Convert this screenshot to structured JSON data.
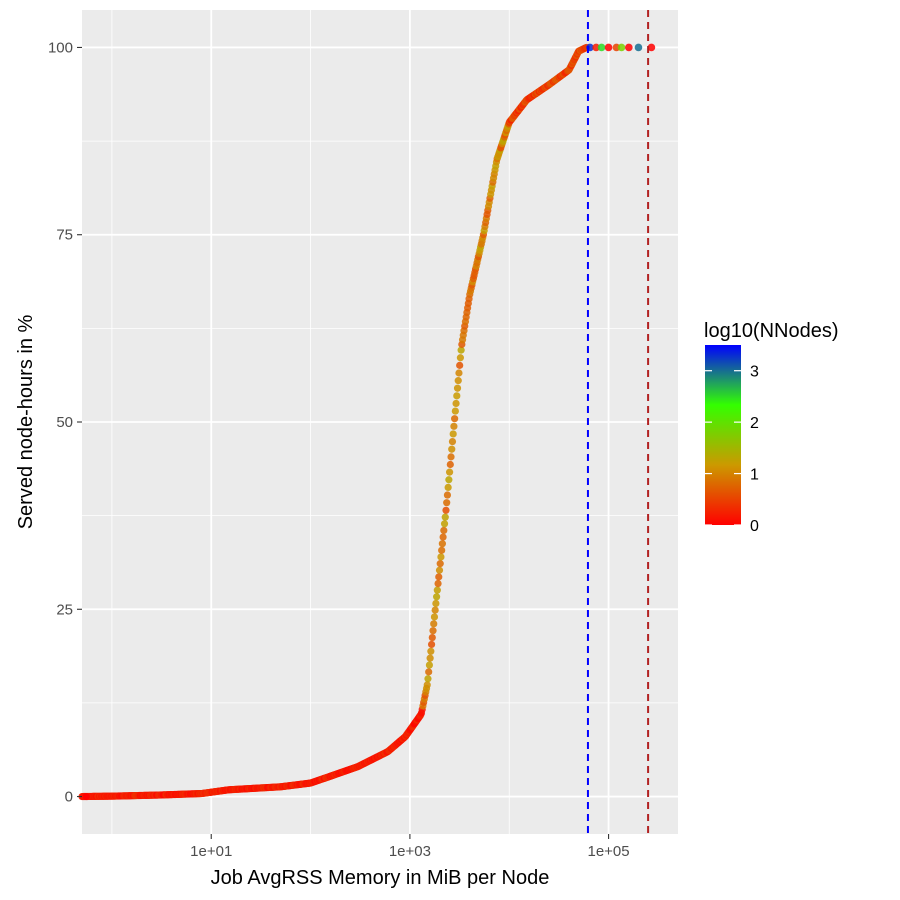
{
  "chart_data": {
    "type": "scatter",
    "title": "",
    "xlabel": "Job AvgRSS Memory in MiB per Node",
    "ylabel": "Served node-hours in %",
    "x_scale": "log10",
    "xlim": [
      0.5,
      500000
    ],
    "ylim": [
      -5,
      105
    ],
    "x_ticks": [
      {
        "value": 10,
        "label": "1e+01"
      },
      {
        "value": 1000,
        "label": "1e+03"
      },
      {
        "value": 100000,
        "label": "1e+05"
      }
    ],
    "y_ticks": [
      {
        "value": 0,
        "label": "0"
      },
      {
        "value": 25,
        "label": "25"
      },
      {
        "value": 50,
        "label": "50"
      },
      {
        "value": 75,
        "label": "75"
      },
      {
        "value": 100,
        "label": "100"
      }
    ],
    "grid": true,
    "curve": [
      {
        "x": 0.5,
        "y": 0
      },
      {
        "x": 1,
        "y": 0.05
      },
      {
        "x": 3,
        "y": 0.2
      },
      {
        "x": 8,
        "y": 0.4
      },
      {
        "x": 15,
        "y": 0.9
      },
      {
        "x": 50,
        "y": 1.3
      },
      {
        "x": 100,
        "y": 1.8
      },
      {
        "x": 150,
        "y": 2.6
      },
      {
        "x": 300,
        "y": 4.0
      },
      {
        "x": 600,
        "y": 6.0
      },
      {
        "x": 900,
        "y": 8.0
      },
      {
        "x": 1300,
        "y": 11.0
      },
      {
        "x": 1500,
        "y": 15.0
      },
      {
        "x": 1800,
        "y": 25.0
      },
      {
        "x": 2300,
        "y": 38.0
      },
      {
        "x": 2800,
        "y": 50.0
      },
      {
        "x": 3300,
        "y": 60.0
      },
      {
        "x": 4000,
        "y": 67.0
      },
      {
        "x": 5500,
        "y": 75.0
      },
      {
        "x": 7500,
        "y": 85.0
      },
      {
        "x": 10000,
        "y": 90.0
      },
      {
        "x": 15000,
        "y": 93.0
      },
      {
        "x": 25000,
        "y": 95.0
      },
      {
        "x": 40000,
        "y": 97.0
      },
      {
        "x": 50000,
        "y": 99.5
      },
      {
        "x": 60000,
        "y": 100
      }
    ],
    "tail_points": [
      {
        "x": 65000,
        "y": 100,
        "c": 3.3
      },
      {
        "x": 75000,
        "y": 100,
        "c": 0.2
      },
      {
        "x": 85000,
        "y": 100,
        "c": 2.5
      },
      {
        "x": 100000,
        "y": 100,
        "c": 0
      },
      {
        "x": 120000,
        "y": 100,
        "c": 0.5
      },
      {
        "x": 135000,
        "y": 100,
        "c": 1.8
      },
      {
        "x": 160000,
        "y": 100,
        "c": 0
      },
      {
        "x": 200000,
        "y": 100,
        "c": 3.0
      },
      {
        "x": 270000,
        "y": 100,
        "c": 0
      }
    ],
    "reference_lines": [
      {
        "x": 62000,
        "color": "#0000ff",
        "style": "dashed"
      },
      {
        "x": 250000,
        "color": "#b22222",
        "style": "dashed"
      }
    ],
    "legend": {
      "title": "log10(NNodes)",
      "position": "right",
      "range": [
        0,
        3.5
      ],
      "ticks": [
        {
          "value": 0,
          "label": "0"
        },
        {
          "value": 1,
          "label": "1"
        },
        {
          "value": 2,
          "label": "2"
        },
        {
          "value": 3,
          "label": "3"
        }
      ],
      "colors": [
        "#ff0000",
        "#cc9900",
        "#33ff00",
        "#0000ff"
      ]
    },
    "panel_color": "#ebebeb",
    "grid_color": "#ffffff"
  }
}
